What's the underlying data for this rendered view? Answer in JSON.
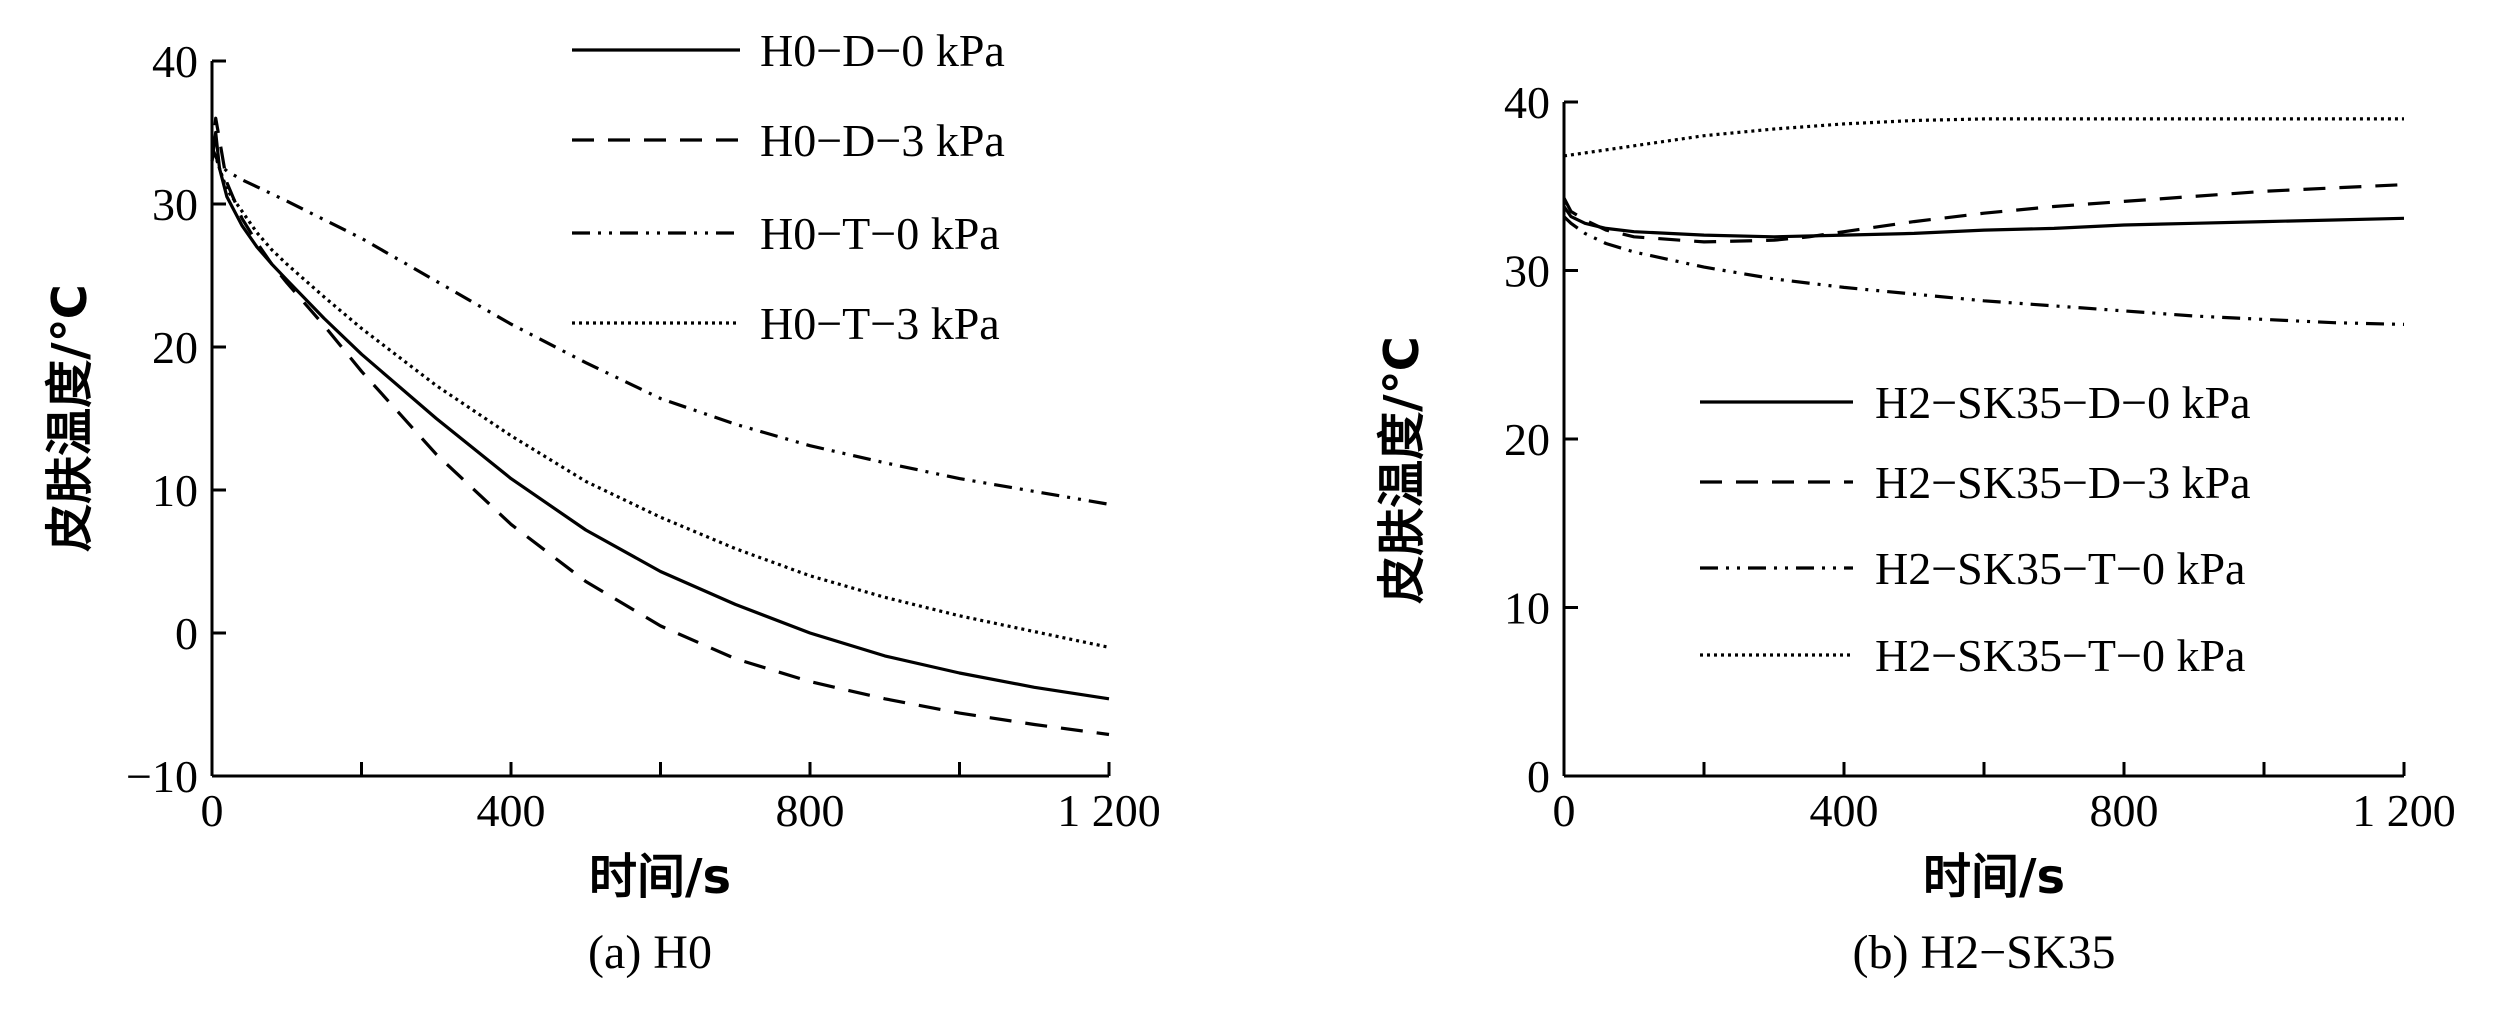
{
  "chart_data": [
    {
      "type": "line",
      "caption": "(a) H0",
      "xlabel": "时间/s",
      "ylabel": "皮肤温度/℃",
      "xlim": [
        0,
        1200
      ],
      "ylim": [
        -10,
        40
      ],
      "xticks": [
        0,
        400,
        800,
        1200
      ],
      "xtick_labels": [
        "0",
        "400",
        "800",
        "1 200"
      ],
      "xticks_minor": [
        200,
        600,
        1000
      ],
      "yticks": [
        -10,
        0,
        10,
        20,
        30,
        40
      ],
      "ytick_labels": [
        "−10",
        "0",
        "10",
        "20",
        "30",
        "40"
      ],
      "legend_position": "top-right",
      "series": [
        {
          "name": "H0−D−0 kPa",
          "style": "solid",
          "x": [
            0,
            5,
            10,
            20,
            40,
            60,
            80,
            100,
            150,
            200,
            300,
            400,
            500,
            600,
            700,
            800,
            900,
            1000,
            1100,
            1200
          ],
          "y": [
            33,
            35,
            32.5,
            30.5,
            28.5,
            27,
            25.8,
            24.7,
            22,
            19.5,
            15,
            10.8,
            7.2,
            4.3,
            2,
            0,
            -1.6,
            -2.8,
            -3.8,
            -4.6
          ]
        },
        {
          "name": "H0−D−3 kPa",
          "style": "dashed",
          "x": [
            0,
            5,
            10,
            20,
            40,
            60,
            80,
            100,
            150,
            200,
            300,
            400,
            500,
            600,
            700,
            800,
            900,
            1000,
            1100,
            1200
          ],
          "y": [
            33,
            36,
            34.5,
            31.5,
            29,
            27.3,
            25.8,
            24.5,
            21.5,
            18.3,
            12.5,
            7.6,
            3.6,
            0.5,
            -1.8,
            -3.4,
            -4.6,
            -5.6,
            -6.4,
            -7.1
          ]
        },
        {
          "name": "H0−T−0 kPa",
          "style": "dashdotdot",
          "x": [
            0,
            5,
            10,
            20,
            40,
            60,
            100,
            150,
            200,
            300,
            400,
            500,
            600,
            700,
            800,
            900,
            1000,
            1100,
            1200
          ],
          "y": [
            34,
            33.3,
            32.8,
            32.3,
            31.7,
            31.2,
            30.2,
            28.9,
            27.6,
            24.6,
            21.6,
            18.9,
            16.4,
            14.6,
            13.1,
            11.9,
            10.8,
            9.9,
            9
          ]
        },
        {
          "name": "H0−T−3 kPa",
          "style": "dotted",
          "x": [
            0,
            5,
            10,
            20,
            40,
            60,
            80,
            100,
            150,
            200,
            300,
            400,
            500,
            600,
            700,
            800,
            900,
            1000,
            1100,
            1200
          ],
          "y": [
            34,
            33.3,
            32.5,
            31,
            29.5,
            28,
            26.8,
            25.8,
            23.5,
            21.3,
            17.3,
            13.8,
            10.6,
            8.1,
            5.9,
            4,
            2.5,
            1.2,
            0.1,
            -1
          ]
        }
      ]
    },
    {
      "type": "line",
      "caption": "(b) H2−SK35",
      "xlabel": "时间/s",
      "ylabel": "皮肤温度/℃",
      "xlim": [
        0,
        1200
      ],
      "ylim": [
        0,
        40
      ],
      "xticks": [
        0,
        400,
        800,
        1200
      ],
      "xtick_labels": [
        "0",
        "400",
        "800",
        "1 200"
      ],
      "xticks_minor": [
        200,
        600,
        1000
      ],
      "yticks": [
        0,
        10,
        20,
        30,
        40
      ],
      "ytick_labels": [
        "0",
        "10",
        "20",
        "30",
        "40"
      ],
      "legend_position": "center-right",
      "series": [
        {
          "name": "H2−SK35−D−0 kPa",
          "style": "solid",
          "x": [
            0,
            10,
            30,
            60,
            100,
            200,
            300,
            400,
            500,
            600,
            700,
            800,
            900,
            1000,
            1100,
            1200
          ],
          "y": [
            33.8,
            33.2,
            32.8,
            32.5,
            32.3,
            32.1,
            32,
            32.1,
            32.2,
            32.4,
            32.5,
            32.7,
            32.8,
            32.9,
            33,
            33.1
          ]
        },
        {
          "name": "H2−SK35−D−3 kPa",
          "style": "dashed",
          "x": [
            0,
            10,
            30,
            60,
            100,
            200,
            300,
            350,
            400,
            500,
            600,
            700,
            800,
            900,
            1000,
            1100,
            1200
          ],
          "y": [
            34.3,
            33.5,
            33,
            32.4,
            32,
            31.7,
            31.8,
            32,
            32.3,
            32.9,
            33.4,
            33.8,
            34.1,
            34.4,
            34.7,
            34.9,
            35.1
          ]
        },
        {
          "name": "H2−SK35−T−0 kPa",
          "style": "dashdotdot",
          "x": [
            0,
            10,
            30,
            60,
            100,
            200,
            300,
            400,
            500,
            600,
            700,
            800,
            900,
            1000,
            1100,
            1200
          ],
          "y": [
            33.2,
            32.8,
            32.2,
            31.6,
            31.1,
            30.2,
            29.5,
            29,
            28.6,
            28.2,
            27.9,
            27.6,
            27.3,
            27.1,
            26.9,
            26.8
          ]
        },
        {
          "name": "H2−SK35−T−0 kPa",
          "style": "dotted",
          "x": [
            0,
            50,
            100,
            200,
            300,
            400,
            500,
            600,
            700,
            800,
            900,
            1000,
            1100,
            1200
          ],
          "y": [
            36.8,
            37.1,
            37.4,
            38,
            38.4,
            38.7,
            38.9,
            39,
            39,
            39,
            39,
            39,
            39,
            39
          ]
        }
      ]
    }
  ]
}
